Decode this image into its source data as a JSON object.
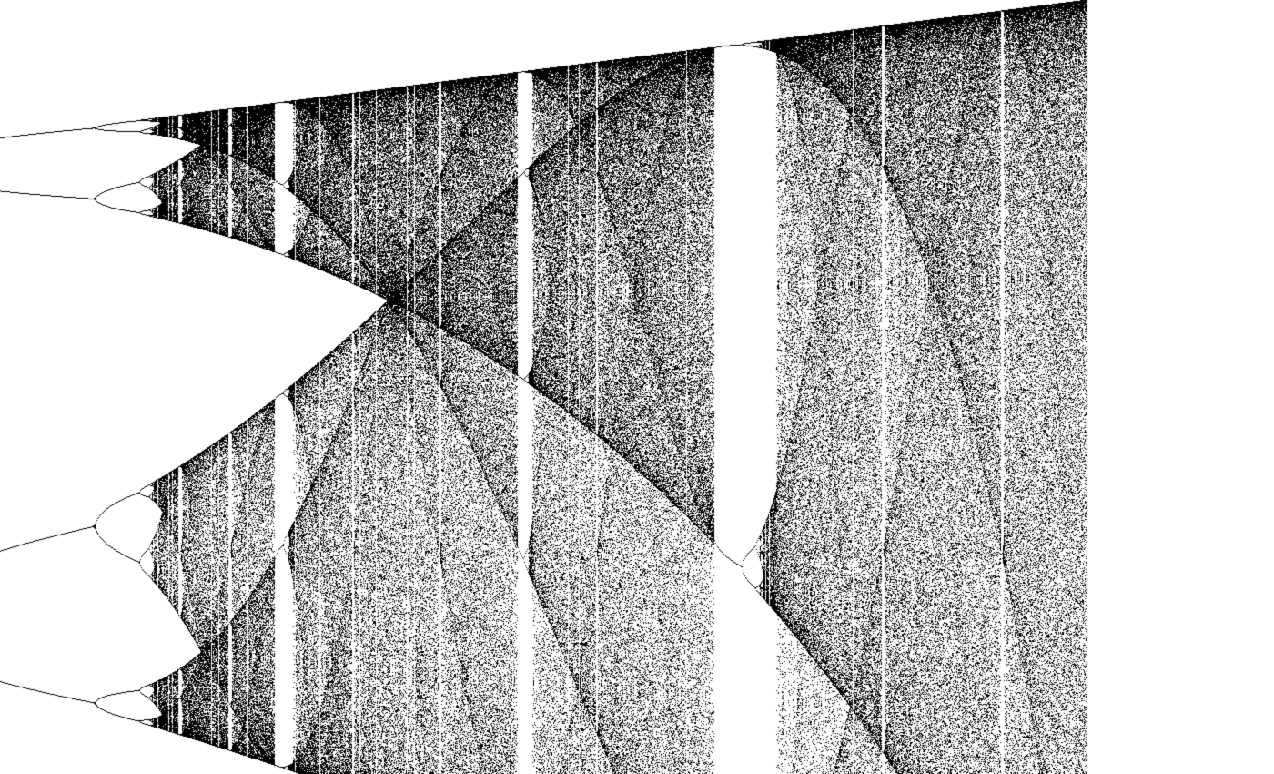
{
  "image": {
    "kind": "bifurcation-diagram",
    "point_color": "#000000",
    "background_color": "#ffffff",
    "visible_text": []
  }
}
